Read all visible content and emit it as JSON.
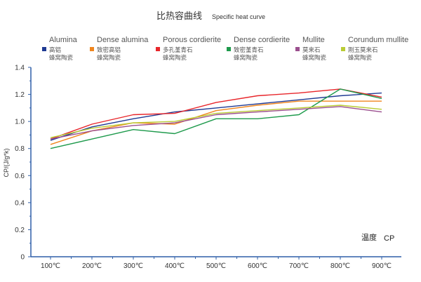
{
  "chart_data": {
    "type": "line",
    "title": "比热容曲线",
    "subtitle": "Specific heat curve",
    "ylabel": "CP/(J/g*k)",
    "xlabel_cn": "温度",
    "xlabel_en": "CP",
    "categories": [
      "100℃",
      "200℃",
      "300℃",
      "400℃",
      "500℃",
      "600℃",
      "700℃",
      "800℃",
      "900℃"
    ],
    "yticks": [
      "0",
      "0.2",
      "0.4",
      "0.6",
      "0.8",
      "1.0",
      "1.2",
      "1.4"
    ],
    "ylim": [
      0,
      1.4
    ],
    "grid": false,
    "legend_position": "top",
    "series": [
      {
        "name": "Alumina",
        "name_cn_1": "高铝",
        "name_cn_2": "蜂窝陶瓷",
        "color": "#1f3a93",
        "values": [
          0.86,
          0.96,
          1.02,
          1.07,
          1.1,
          1.13,
          1.16,
          1.19,
          1.21
        ]
      },
      {
        "name": "Dense alumina",
        "name_cn_1": "致密高铝",
        "name_cn_2": "蜂窝陶瓷",
        "color": "#f0861e",
        "values": [
          0.83,
          0.93,
          0.99,
          0.98,
          1.08,
          1.12,
          1.15,
          1.15,
          1.15
        ]
      },
      {
        "name": "Porous cordierite",
        "name_cn_1": "多孔堇青石",
        "name_cn_2": "蜂窝陶瓷",
        "color": "#e8262b",
        "values": [
          0.87,
          0.98,
          1.05,
          1.06,
          1.14,
          1.19,
          1.21,
          1.24,
          1.18
        ]
      },
      {
        "name": "Dense cordierite",
        "name_cn_1": "致密堇青石",
        "name_cn_2": "蜂窝陶瓷",
        "color": "#1e9a4c",
        "values": [
          0.8,
          0.87,
          0.94,
          0.91,
          1.02,
          1.02,
          1.05,
          1.24,
          1.17
        ]
      },
      {
        "name": "Mullite",
        "name_cn_1": "莫来石",
        "name_cn_2": "蜂窝陶瓷",
        "color": "#9b4f8e",
        "values": [
          0.87,
          0.93,
          0.97,
          0.99,
          1.05,
          1.07,
          1.09,
          1.11,
          1.07
        ]
      },
      {
        "name": "Corundum mullite",
        "name_cn_1": "刚玉莫来石",
        "name_cn_2": "蜂窝陶瓷",
        "color": "#b9cc35",
        "values": [
          0.88,
          0.95,
          0.99,
          1.0,
          1.06,
          1.08,
          1.1,
          1.12,
          1.09
        ]
      }
    ]
  }
}
